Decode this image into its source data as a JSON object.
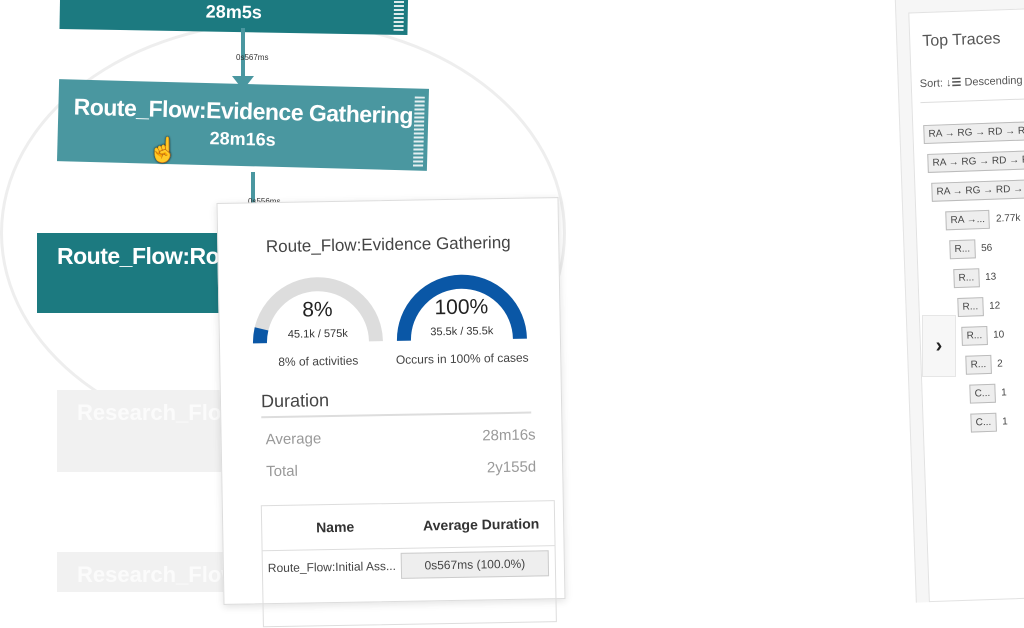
{
  "colors": {
    "node_dark": "#1c7a80",
    "node_hover": "#4a97a0",
    "gauge_fill": "#0a57a6",
    "gauge_track": "#dddddd"
  },
  "graph": {
    "nodes": [
      {
        "title": "",
        "duration": "28m5s"
      },
      {
        "title": "Route_Flow:Evidence Gathering",
        "duration": "28m16s"
      },
      {
        "title": "Route_Flow:Ro",
        "duration": ""
      },
      {
        "title": "Research_Flow",
        "duration": ""
      },
      {
        "title": "Research_Flow",
        "duration": ""
      }
    ],
    "edges": [
      {
        "label": "0s567ms"
      },
      {
        "label": "0s556ms"
      }
    ]
  },
  "popup": {
    "title": "Route_Flow:Evidence Gathering",
    "gauges": [
      {
        "percent": "8%",
        "value": 8,
        "ratio": "45.1k / 575k",
        "caption": "8% of activities"
      },
      {
        "percent": "100%",
        "value": 100,
        "ratio": "35.5k / 35.5k",
        "caption": "Occurs in 100% of cases"
      }
    ],
    "duration": {
      "heading": "Duration",
      "rows": [
        {
          "label": "Average",
          "value": "28m16s"
        },
        {
          "label": "Total",
          "value": "2y155d"
        }
      ]
    },
    "table": {
      "headers": [
        "Name",
        "Average Duration"
      ],
      "rows": [
        {
          "name": "Route_Flow:Initial Ass...",
          "avg": "0s567ms (100.0%)"
        }
      ]
    }
  },
  "top_traces": {
    "title": "Top Traces",
    "sort_label": "Sort:",
    "sort_icon": "sort-descending-icon",
    "sort_value": "Descending",
    "items": [
      {
        "chip": "RA → RG → RD → RE →",
        "count": ""
      },
      {
        "chip": "RA → RG → RD → RE",
        "count": ""
      },
      {
        "chip": "RA → RG → RD → R",
        "count": ""
      },
      {
        "chip": "RA →...",
        "count": "2.77k"
      },
      {
        "chip": "R...",
        "count": "56"
      },
      {
        "chip": "R...",
        "count": "13"
      },
      {
        "chip": "R...",
        "count": "12"
      },
      {
        "chip": "R...",
        "count": "10"
      },
      {
        "chip": "R...",
        "count": "2"
      },
      {
        "chip": "C...",
        "count": "1"
      },
      {
        "chip": "C...",
        "count": "1"
      }
    ],
    "toggle_icon": "chevron-right-icon"
  }
}
